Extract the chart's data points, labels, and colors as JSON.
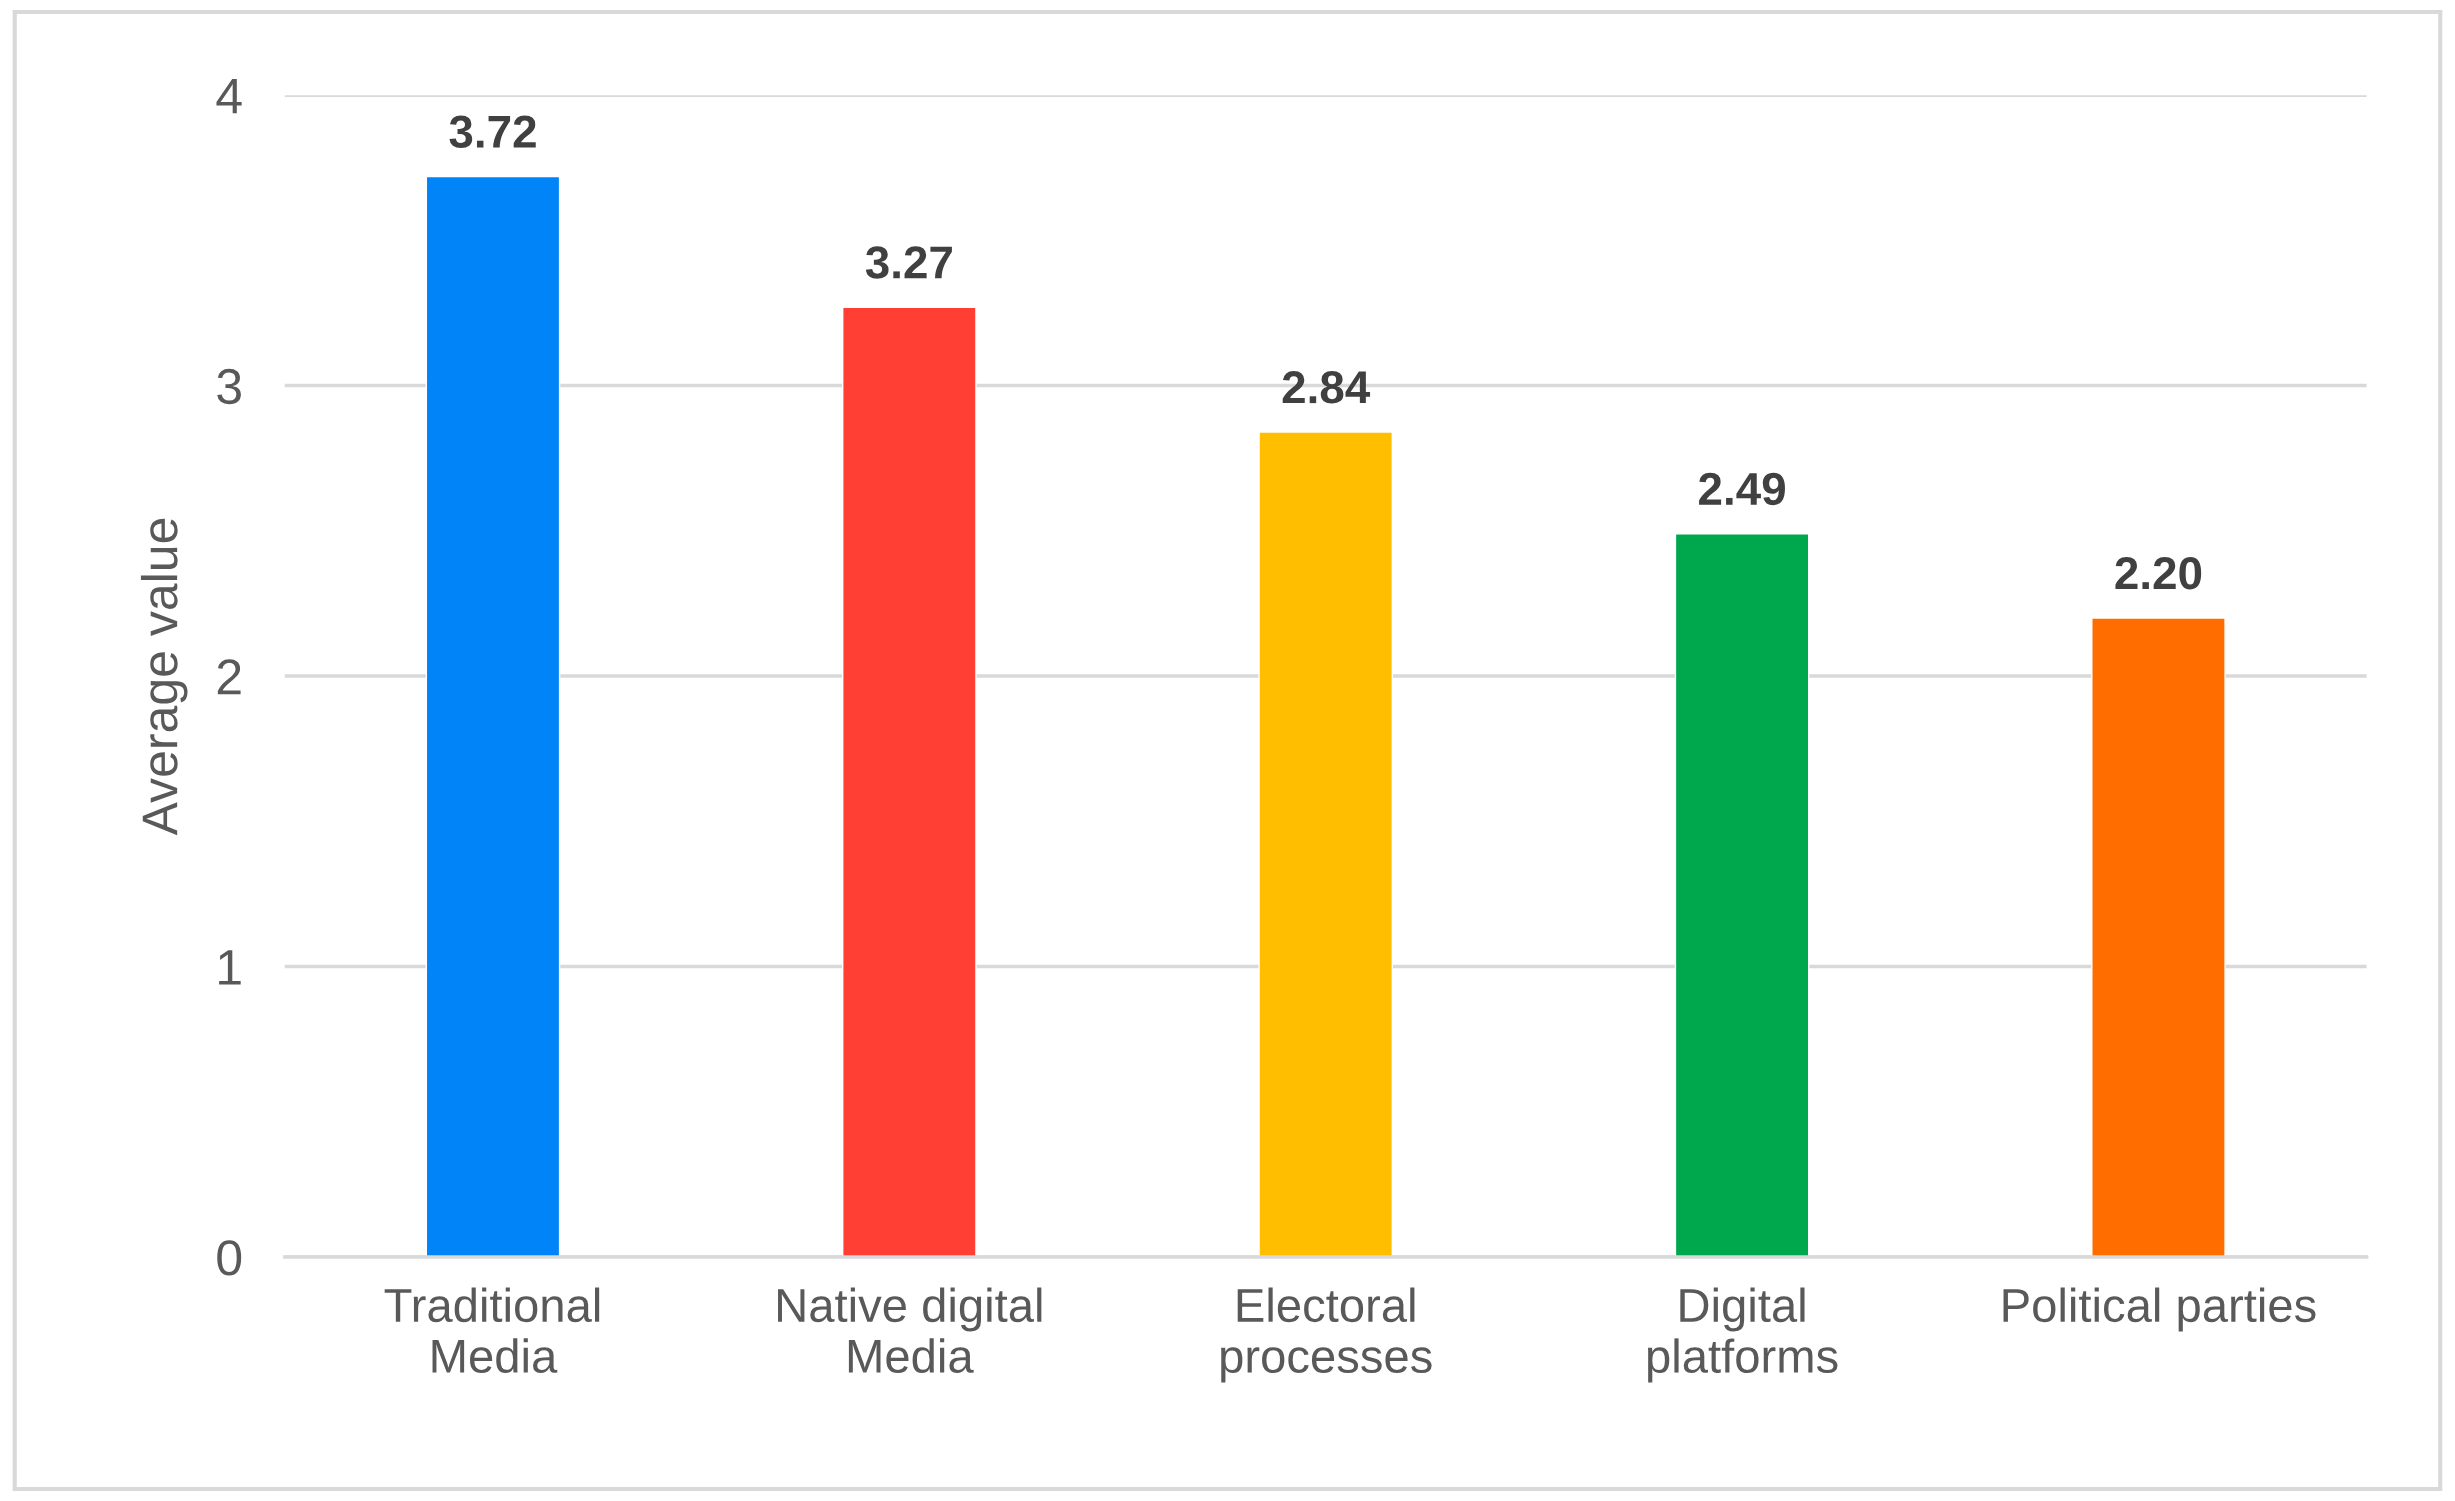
{
  "chart_data": {
    "type": "bar",
    "ylabel": "Average value",
    "categories": [
      "Traditional\nMedia",
      "Native digital\nMedia",
      "Electoral\nprocesses",
      "Digital\nplatforms",
      "Political parties"
    ],
    "values": [
      3.72,
      3.27,
      2.84,
      2.49,
      2.2
    ],
    "colors": [
      "#0084f8",
      "#ff3f33",
      "#ffbf00",
      "#00a84d",
      "#ff6d00"
    ],
    "value_labels": [
      "3.72",
      "3.27",
      "2.84",
      "2.49",
      "2.20"
    ],
    "ylim": [
      0,
      4
    ],
    "yticks": [
      0,
      1,
      2,
      3,
      4
    ],
    "grid": "y"
  }
}
